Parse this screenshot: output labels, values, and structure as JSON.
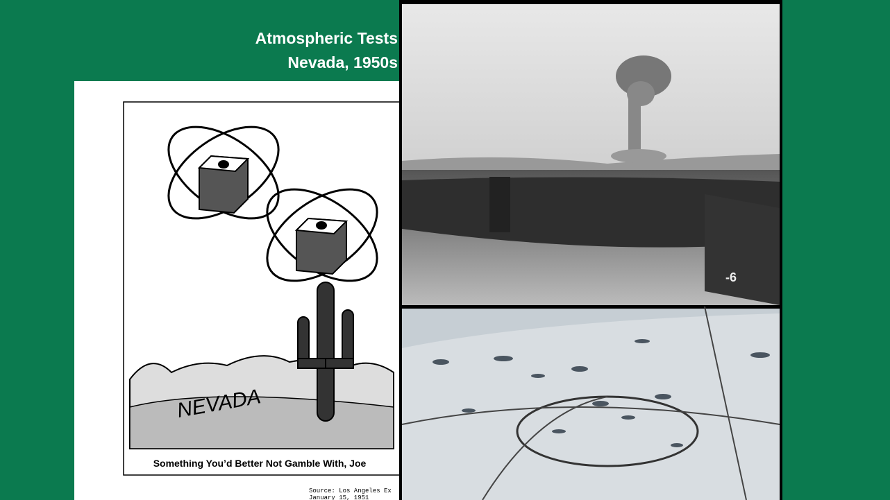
{
  "slide": {
    "title": [
      "Atmospheric Tests",
      "Nevada, 1950s"
    ]
  },
  "cartoon": {
    "label": "NEVADA",
    "caption": "Something You’d Better Not Gamble With, Joe",
    "source": [
      "Source: Los Angeles Ex",
      "January 15, 1951"
    ]
  },
  "photo": {
    "label": "-6"
  }
}
